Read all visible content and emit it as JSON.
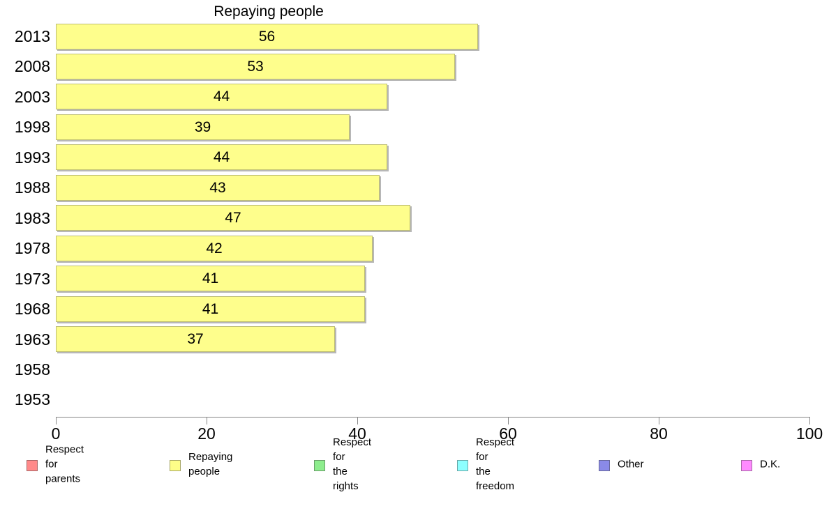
{
  "chart_data": {
    "type": "bar",
    "orientation": "horizontal",
    "title": "Repaying people",
    "series_name": "Repaying people",
    "categories": [
      "2013",
      "2008",
      "2003",
      "1998",
      "1993",
      "1988",
      "1983",
      "1978",
      "1973",
      "1968",
      "1963",
      "1958",
      "1953"
    ],
    "values": [
      56,
      53,
      44,
      39,
      44,
      43,
      47,
      42,
      41,
      41,
      37,
      null,
      null
    ],
    "xlim": [
      0,
      100
    ],
    "x_ticks": [
      "0",
      "20",
      "40",
      "60",
      "80",
      "100"
    ],
    "grid": false,
    "bar_color": "#fefe8c",
    "bar_border_color": "#bdbd72",
    "axis_color": "#878787",
    "legend_position": "bottom",
    "legend": [
      {
        "label": "Respect for parents",
        "color": "#ff8a8a"
      },
      {
        "label": "Repaying people",
        "color": "#fdfd88"
      },
      {
        "label": "Respect for\nthe rights",
        "color": "#8ded8d"
      },
      {
        "label": "Respect for\nthe freedom",
        "color": "#8dffff"
      },
      {
        "label": "Other",
        "color": "#8a8ae8"
      },
      {
        "label": "D.K.",
        "color": "#ff8aff"
      }
    ]
  }
}
